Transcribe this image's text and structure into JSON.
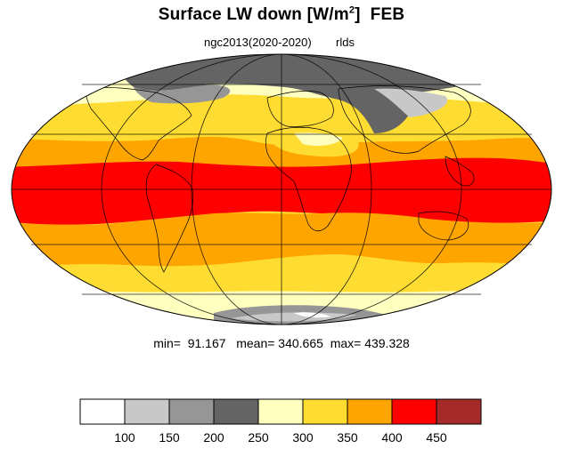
{
  "title": {
    "main": "Surface LW down [W/m",
    "sup": "2",
    "close": "]",
    "month": "FEB"
  },
  "subtitle": {
    "left": "ngc2013(2020-2020)",
    "right": "rlds"
  },
  "stats": {
    "min_label": "min=",
    "min": "91.167",
    "mean_label": "mean=",
    "mean": "340.665",
    "max_label": "max=",
    "max": "439.328"
  },
  "colorbar": {
    "labels": [
      "100",
      "150",
      "200",
      "250",
      "300",
      "350",
      "400",
      "450"
    ],
    "colors": [
      "#ffffff",
      "#c8c8c8",
      "#969696",
      "#646464",
      "#ffffc0",
      "#ffdc32",
      "#ffa500",
      "#ff0000",
      "#a52a2a"
    ]
  },
  "map": {
    "projection": "Mollweide",
    "colors": {
      "ocean_tropics": "#ff0000",
      "subtropics": "#ffa500",
      "midlat": "#ffdc32",
      "highlat": "#ffffc0",
      "ice_dark": "#646464",
      "ice_mid": "#969696",
      "ice_light": "#c8c8c8"
    }
  }
}
